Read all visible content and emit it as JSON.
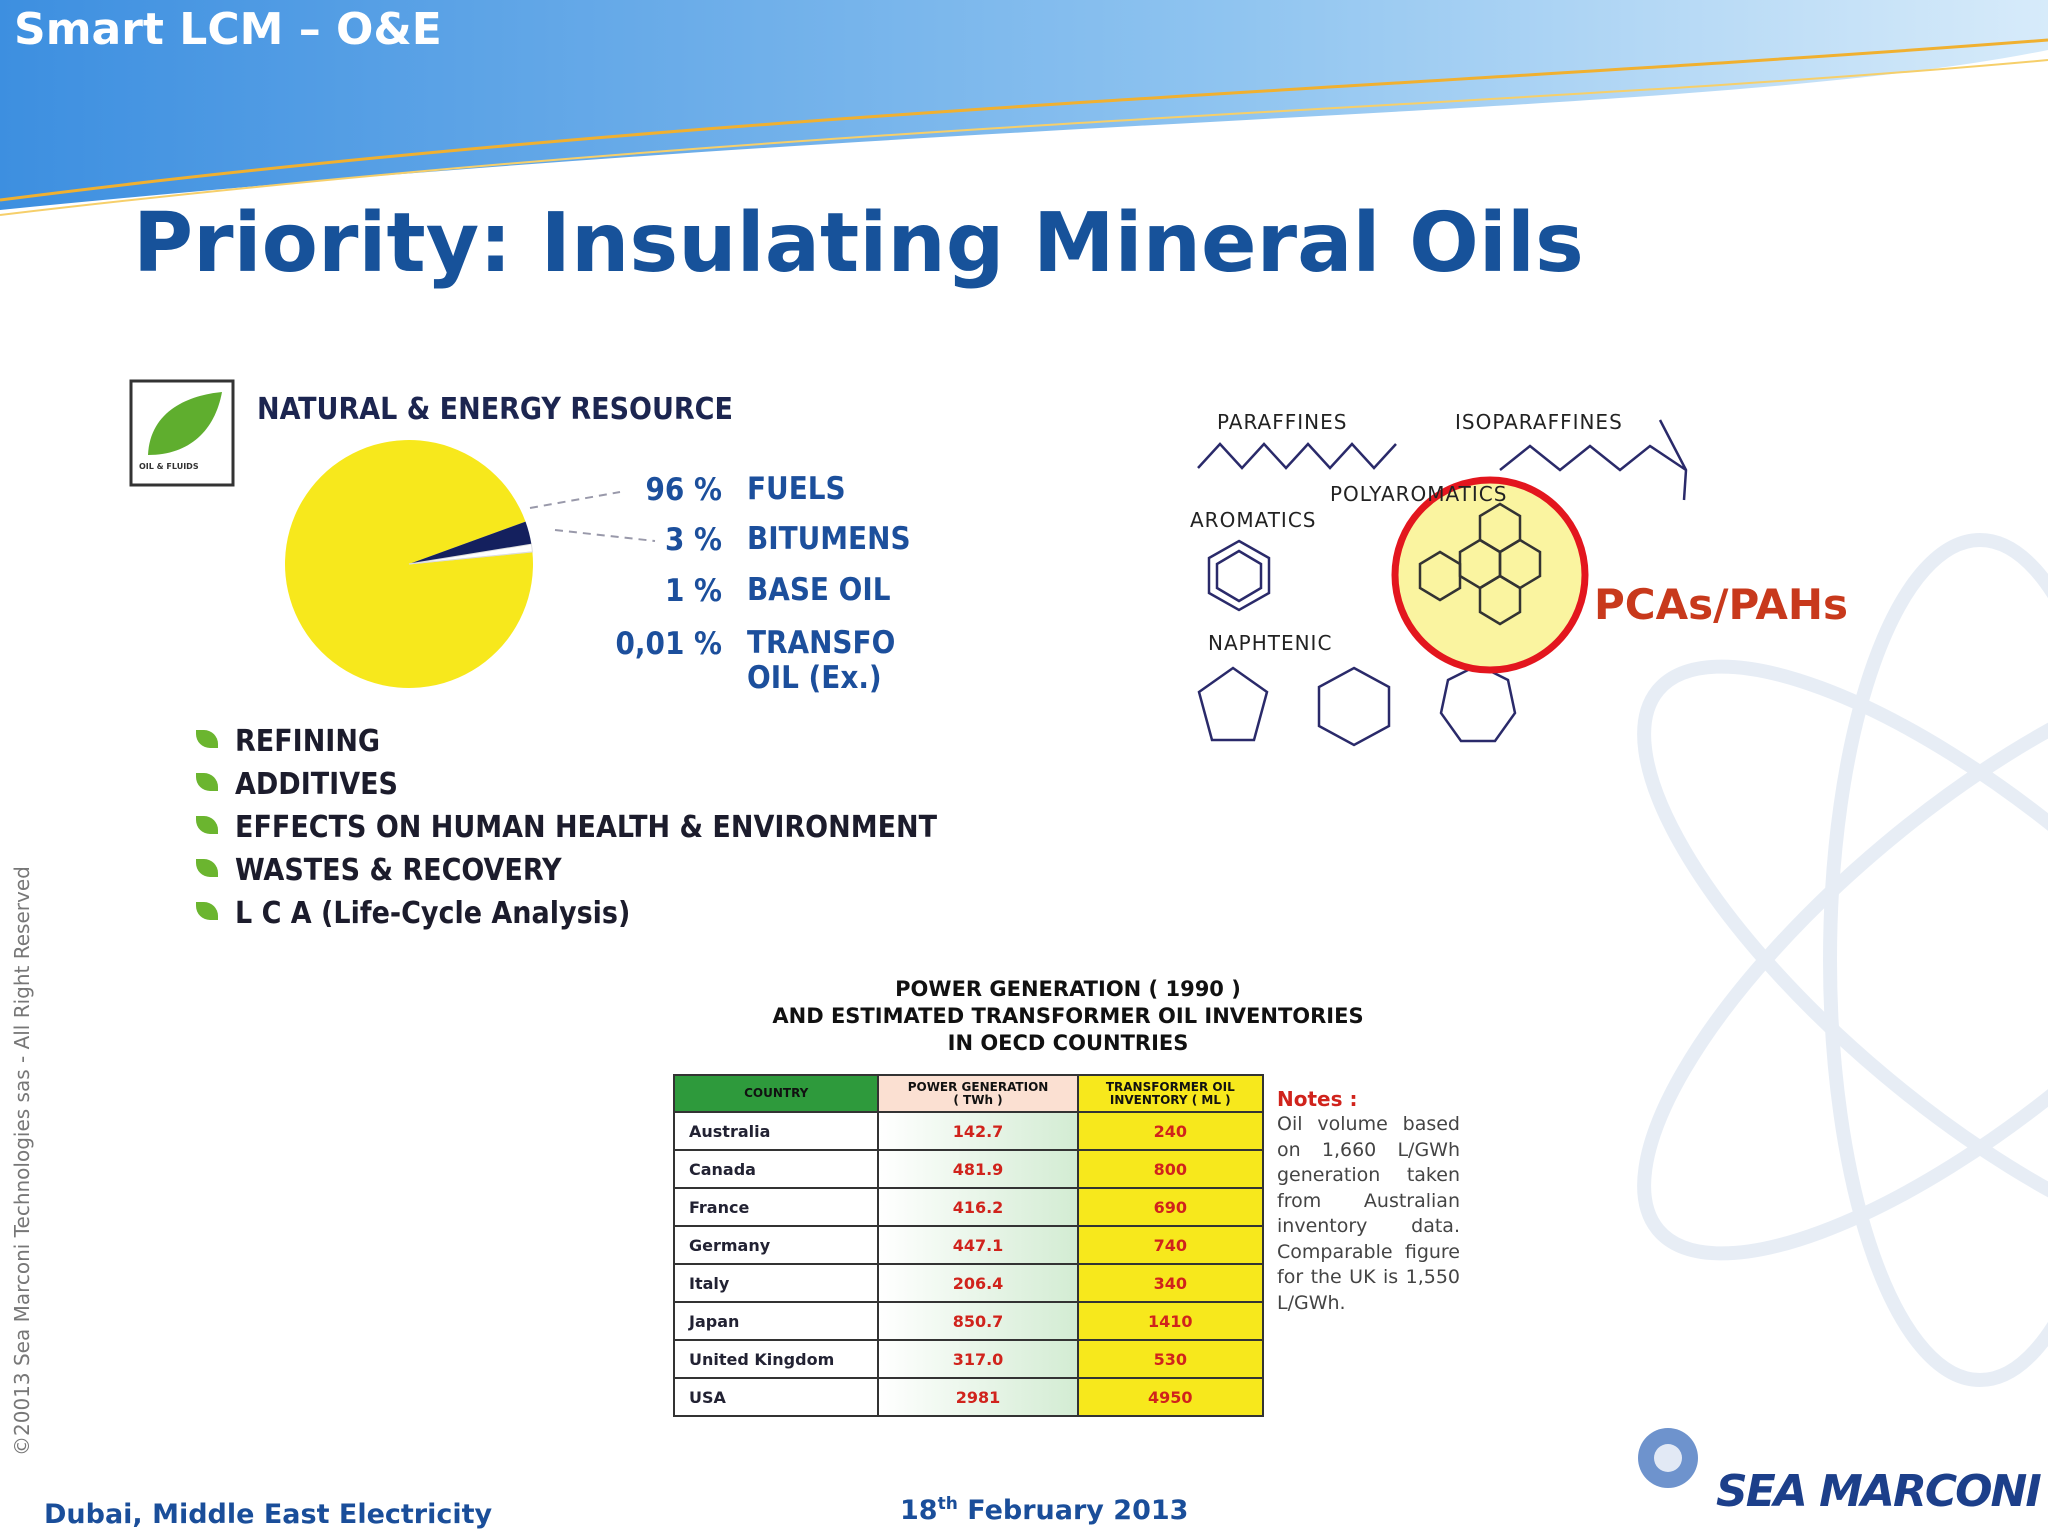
{
  "header": {
    "section": "Smart LCM – O&E",
    "title": "Priority: Insulating Mineral Oils"
  },
  "resource_panel": {
    "logo_text": "OIL & FLUIDS",
    "heading": "NATURAL & ENERGY RESOURCE",
    "pie": {
      "type": "pie",
      "categories": [
        "FUELS",
        "BITUMENS",
        "BASE OIL",
        "TRANSFO OIL (Ex.)"
      ],
      "values": [
        96,
        3,
        1,
        0.01
      ],
      "value_labels": [
        "96 %",
        "3 %",
        "1 %",
        "0,01 %"
      ],
      "colors": [
        "#f7e81c",
        "#14205e",
        "#ffffff",
        "#ffffff"
      ]
    },
    "bullets": [
      "REFINING",
      "ADDITIVES",
      "EFFECTS ON HUMAN HEALTH & ENVIRONMENT",
      "WASTES & RECOVERY",
      "L C A (Life-Cycle Analysis)"
    ]
  },
  "molecules": {
    "paraffines": "PARAFFINES",
    "isoparaffines": "ISOPARAFFINES",
    "polyaromatics": "POLYAROMATICS",
    "aromatics": "AROMATICS",
    "naphtenic": "NAPHTENIC"
  },
  "callout": "PCAs/PAHs",
  "table": {
    "title": [
      "POWER GENERATION ( 1990 )",
      "AND ESTIMATED TRANSFORMER OIL INVENTORIES",
      "IN OECD COUNTRIES"
    ],
    "columns": [
      [
        "COUNTRY"
      ],
      [
        "POWER GENERATION",
        "( TWh )"
      ],
      [
        "TRANSFORMER OIL",
        "INVENTORY ( ML )"
      ]
    ],
    "rows": [
      [
        "Australia",
        "142.7",
        "240"
      ],
      [
        "Canada",
        "481.9",
        "800"
      ],
      [
        "France",
        "416.2",
        "690"
      ],
      [
        "Germany",
        "447.1",
        "740"
      ],
      [
        "Italy",
        "206.4",
        "340"
      ],
      [
        "Japan",
        "850.7",
        "1410"
      ],
      [
        "United Kingdom",
        "317.0",
        "530"
      ],
      [
        "USA",
        "2981",
        "4950"
      ]
    ]
  },
  "notes": {
    "heading": "Notes :",
    "body": "Oil volume based on 1,660 L/GWh generation taken from Australian inventory data. Comparable figure for the UK is 1,550 L/GWh."
  },
  "footer": {
    "location": "Dubai, Middle East Electricity",
    "date_day": "18",
    "date_suffix": "th",
    "date_rest": "February 2013",
    "logo": "SEA MARCONI",
    "copyright": "©20013  Sea Marconi Technologies sas  -  All Right Reserved"
  }
}
